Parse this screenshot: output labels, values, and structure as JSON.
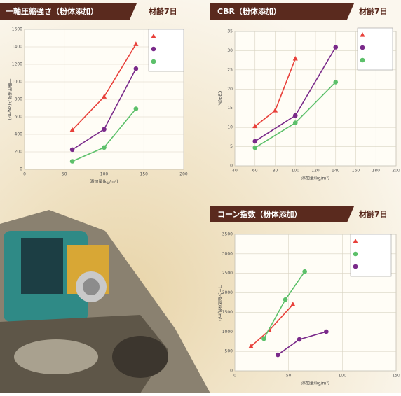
{
  "chart_data": [
    {
      "type": "line",
      "title": "一軸圧縮強さ（粉体添加）",
      "note": "材齢7日",
      "x_label": "添加量(kg/m³)",
      "y_label": "一軸圧縮強さ(kN/m²)",
      "xlim": [
        0,
        200
      ],
      "xticks": [
        0,
        50,
        100,
        150,
        200
      ],
      "ylim": [
        0,
        1600
      ],
      "yticks": [
        0,
        200,
        400,
        600,
        800,
        1000,
        1200,
        1400,
        1600
      ],
      "grid": true,
      "series": [
        {
          "color": "#e8403a",
          "marker": "triangle",
          "x": [
            60,
            100,
            140
          ],
          "values": [
            450,
            830,
            1430
          ]
        },
        {
          "color": "#7a2a8a",
          "marker": "circle",
          "x": [
            60,
            100,
            140
          ],
          "values": [
            225,
            458,
            1150
          ]
        },
        {
          "color": "#5cc06a",
          "marker": "circle",
          "x": [
            60,
            100,
            140
          ],
          "values": [
            92,
            250,
            692
          ]
        }
      ]
    },
    {
      "type": "line",
      "title": "CBR（粉体添加）",
      "note": "材齢7日",
      "x_label": "添加量(kg/m³)",
      "y_label": "CBR(%)",
      "xlim": [
        40,
        200
      ],
      "xticks": [
        40,
        60,
        80,
        100,
        120,
        140,
        160,
        180,
        200
      ],
      "ylim": [
        0,
        35
      ],
      "yticks": [
        0,
        5,
        10,
        15,
        20,
        25,
        30,
        35
      ],
      "grid": true,
      "series": [
        {
          "color": "#e8403a",
          "marker": "triangle",
          "x": [
            60,
            80,
            100
          ],
          "values": [
            10.3,
            14.4,
            27.9
          ]
        },
        {
          "color": "#7a2a8a",
          "marker": "circle",
          "x": [
            60,
            100,
            140
          ],
          "values": [
            6.4,
            13.1,
            30.9
          ]
        },
        {
          "color": "#5cc06a",
          "marker": "circle",
          "x": [
            60,
            100,
            140
          ],
          "values": [
            4.7,
            11.2,
            21.8
          ]
        }
      ]
    },
    {
      "type": "line",
      "title": "コーン指数（粉体添加）",
      "note": "材齢7日",
      "x_label": "添加量(kg/m³)",
      "y_label": "コーン指数(kN/m²)",
      "xlim": [
        0,
        150
      ],
      "xticks": [
        0,
        50,
        100,
        150
      ],
      "ylim": [
        0,
        3500
      ],
      "yticks": [
        0,
        500,
        1000,
        1500,
        2000,
        2500,
        3000,
        3500
      ],
      "grid": true,
      "series": [
        {
          "color": "#e8403a",
          "marker": "triangle",
          "x": [
            15,
            32,
            54
          ],
          "values": [
            627,
            1039,
            1702
          ]
        },
        {
          "color": "#5cc06a",
          "marker": "circle",
          "x": [
            27,
            47,
            65
          ],
          "values": [
            824,
            1828,
            2545
          ]
        },
        {
          "color": "#7a2a8a",
          "marker": "circle",
          "x": [
            40,
            60,
            85
          ],
          "values": [
            412,
            806,
            1004
          ]
        }
      ]
    }
  ]
}
